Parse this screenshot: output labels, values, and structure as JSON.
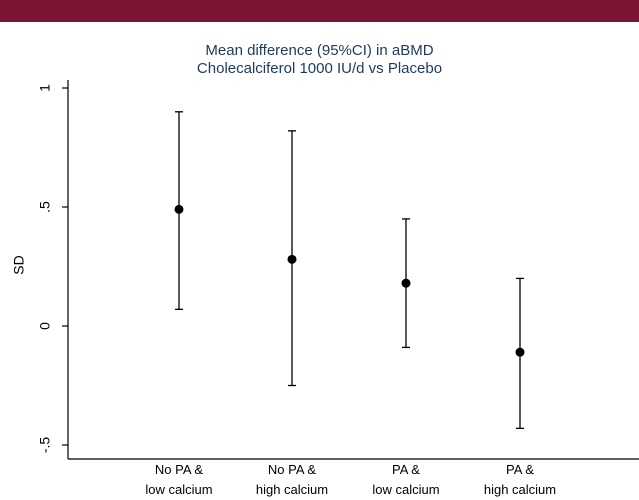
{
  "header": {
    "bar_color": "#7a1631"
  },
  "chart_data": {
    "type": "scatter",
    "title": "Mean difference (95%CI) in aBMD",
    "subtitle": "Cholecalciferol 1000 IU/d vs Placebo",
    "xlabel": "",
    "ylabel": "SD",
    "ylim": [
      -0.55,
      1.05
    ],
    "yticks": [
      {
        "value": -0.5,
        "label": "-.5"
      },
      {
        "value": 0,
        "label": "0"
      },
      {
        "value": 0.5,
        "label": ".5"
      },
      {
        "value": 1,
        "label": "1"
      }
    ],
    "categories": [
      {
        "line1": "No PA &",
        "line2": "low calcium"
      },
      {
        "line1": "No PA &",
        "line2": "high calcium"
      },
      {
        "line1": "PA &",
        "line2": "low calcium"
      },
      {
        "line1": "PA &",
        "line2": "high calcium"
      }
    ],
    "points": [
      {
        "estimate": 0.49,
        "lower": 0.07,
        "upper": 0.9
      },
      {
        "estimate": 0.28,
        "lower": -0.25,
        "upper": 0.82
      },
      {
        "estimate": 0.18,
        "lower": -0.09,
        "upper": 0.45
      },
      {
        "estimate": -0.11,
        "lower": -0.43,
        "upper": 0.2
      }
    ],
    "grid": false,
    "colors": {
      "marker": "#000000",
      "axis": "#000000",
      "title": "#1e3a5f"
    }
  }
}
